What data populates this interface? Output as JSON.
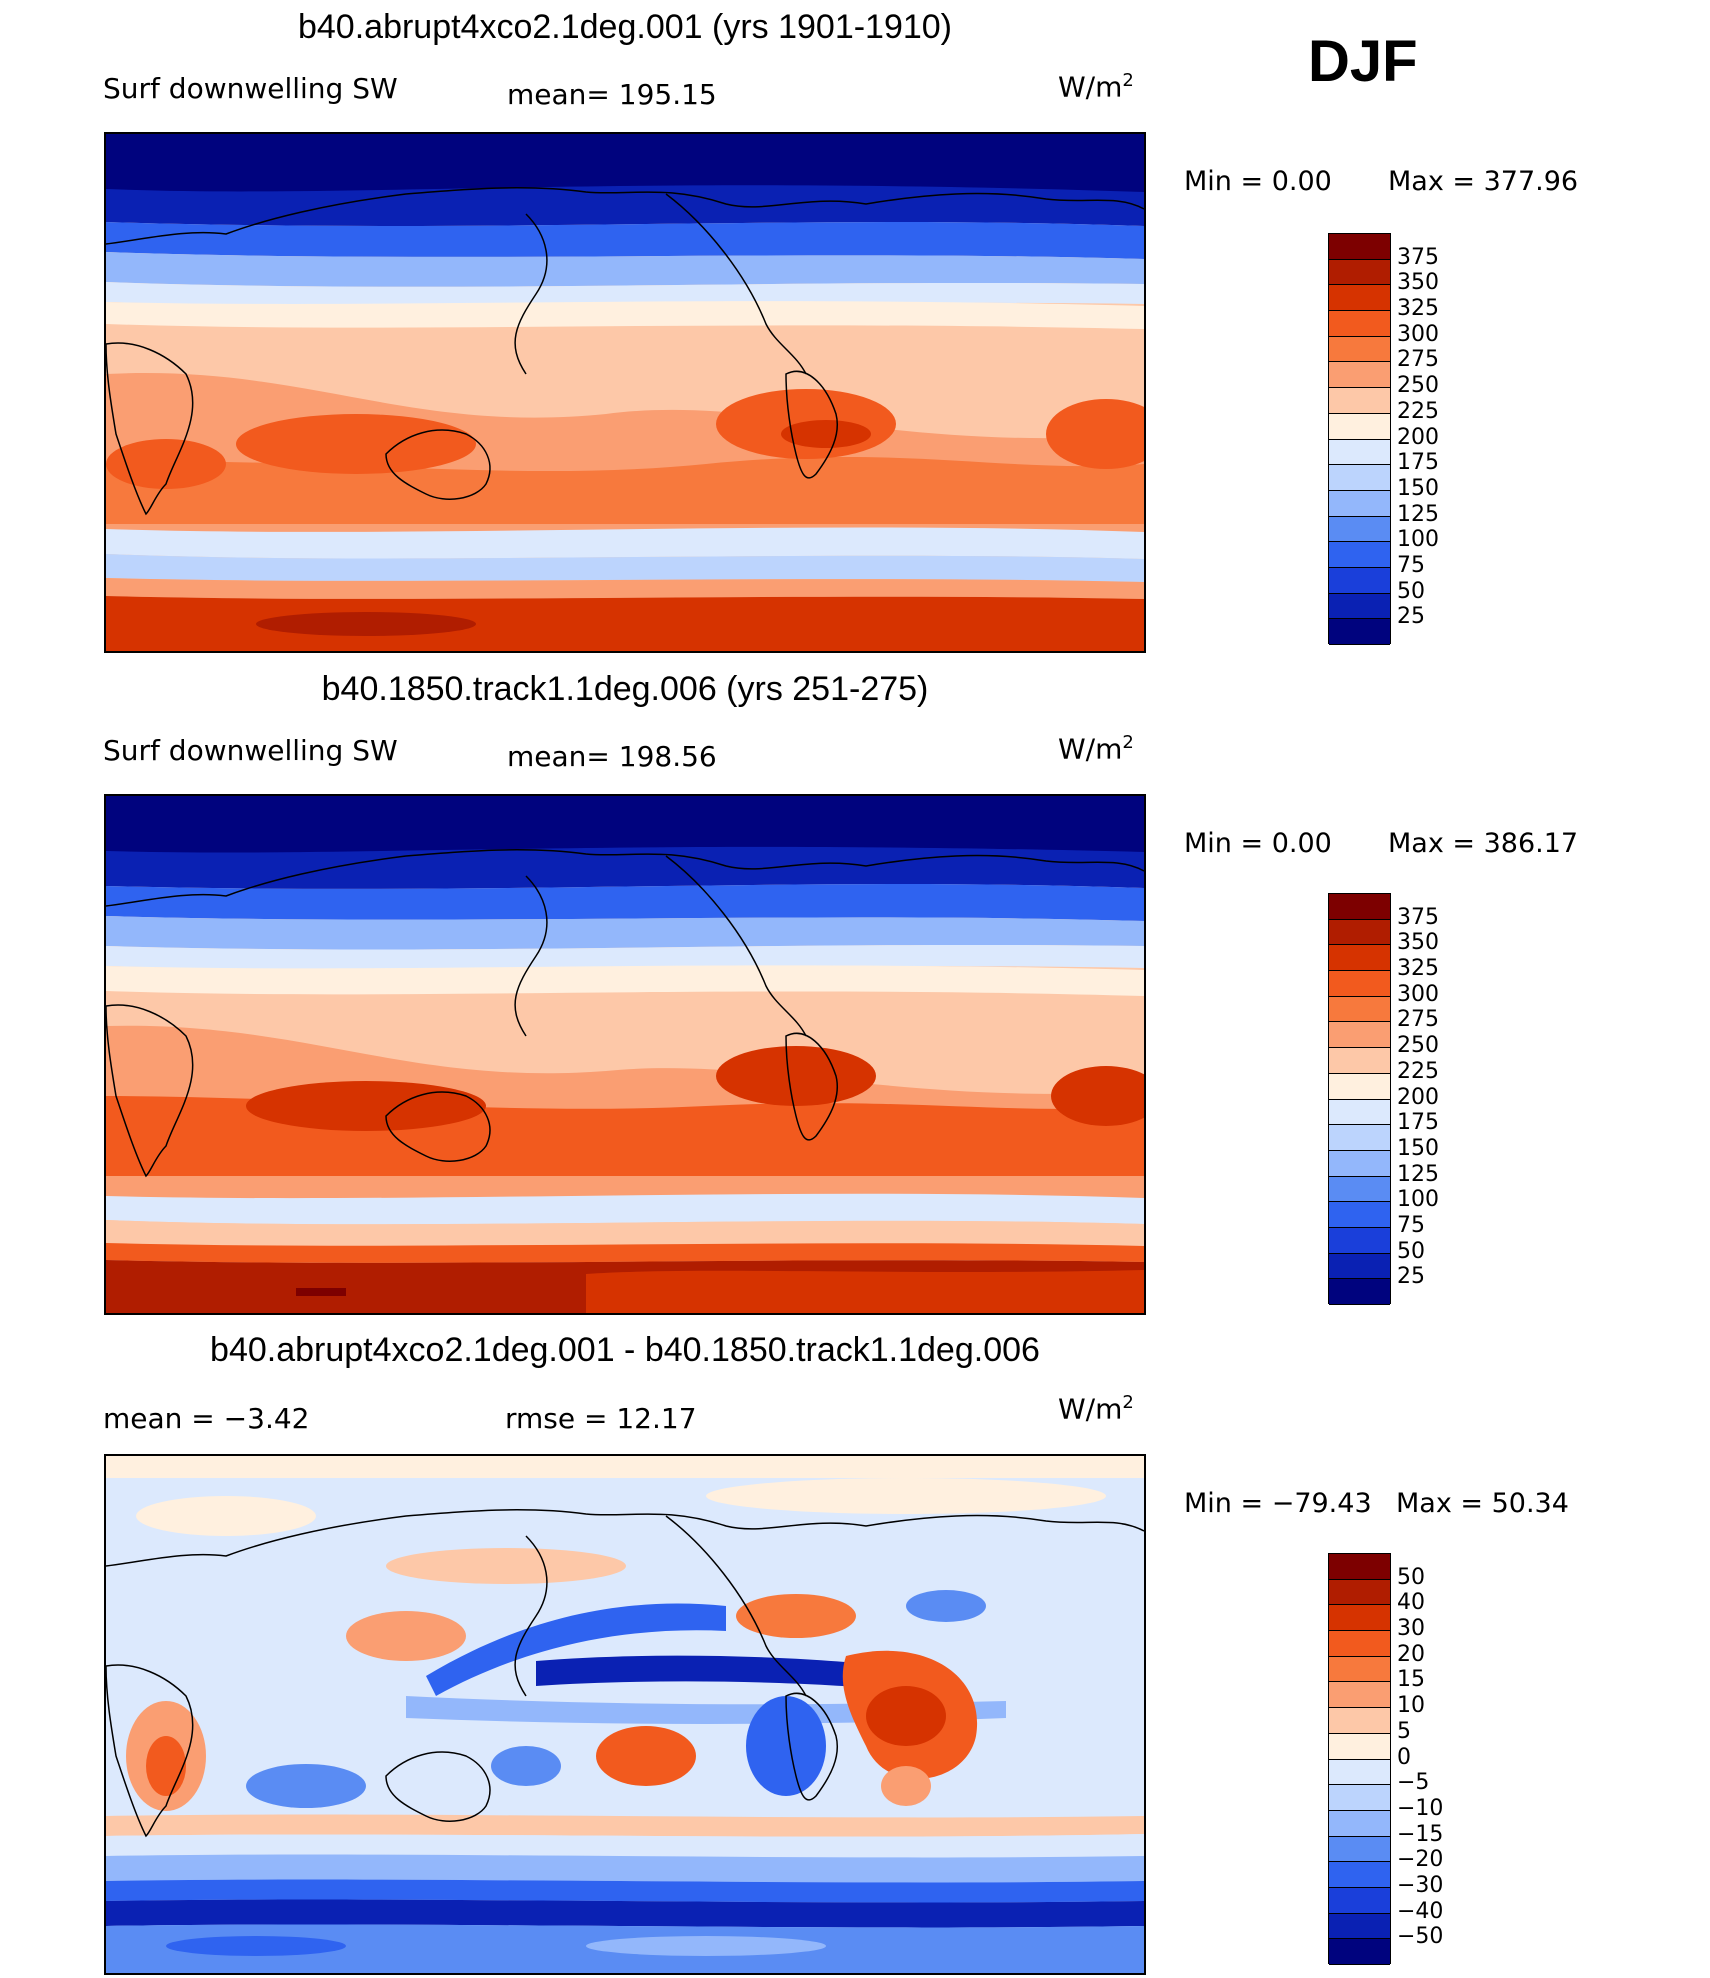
{
  "season": "DJF",
  "panels": [
    {
      "id": "p1",
      "title": "b40.abrupt4xco2.1deg.001 (yrs 1901-1910)",
      "left_label": "Surf downwelling SW",
      "center_label": "mean=  195.15",
      "units_base": "W/m",
      "units_exp": "2",
      "min_text": "Min  =     0.00",
      "max_text": "Max  =  377.96",
      "colorbar_labels": [
        "375",
        "350",
        "325",
        "300",
        "275",
        "250",
        "225",
        "200",
        "175",
        "150",
        "125",
        "100",
        "75",
        "50",
        "25"
      ],
      "colors": [
        "#7d0000",
        "#b01d00",
        "#d63300",
        "#f25a1e",
        "#f7793d",
        "#fa9e72",
        "#fdc8a8",
        "#fff0df",
        "#dce9fd",
        "#bcd4fd",
        "#93b7fb",
        "#5a8cf3",
        "#2f63f0",
        "#1a3fda",
        "#0a21b3",
        "#00037e"
      ]
    },
    {
      "id": "p2",
      "title": "b40.1850.track1.1deg.006 (yrs 251-275)",
      "left_label": "Surf downwelling SW",
      "center_label": "mean=  198.56",
      "units_base": "W/m",
      "units_exp": "2",
      "min_text": "Min  =     0.00",
      "max_text": "Max  =  386.17",
      "colorbar_labels": [
        "375",
        "350",
        "325",
        "300",
        "275",
        "250",
        "225",
        "200",
        "175",
        "150",
        "125",
        "100",
        "75",
        "50",
        "25"
      ],
      "colors": [
        "#7d0000",
        "#b01d00",
        "#d63300",
        "#f25a1e",
        "#f7793d",
        "#fa9e72",
        "#fdc8a8",
        "#fff0df",
        "#dce9fd",
        "#bcd4fd",
        "#93b7fb",
        "#5a8cf3",
        "#2f63f0",
        "#1a3fda",
        "#0a21b3",
        "#00037e"
      ]
    },
    {
      "id": "p3",
      "title": "b40.abrupt4xco2.1deg.001 - b40.1850.track1.1deg.006",
      "left_label": "mean  =    −3.42",
      "center_label": "rmse  =    12.17",
      "units_base": "W/m",
      "units_exp": "2",
      "min_text": "Min  = −79.43",
      "max_text": "Max  =    50.34",
      "colorbar_labels": [
        "50",
        "40",
        "30",
        "20",
        "15",
        "10",
        "5",
        "0",
        "−5",
        "−10",
        "−15",
        "−20",
        "−30",
        "−40",
        "−50"
      ],
      "colors": [
        "#7d0000",
        "#b01d00",
        "#d63300",
        "#f25a1e",
        "#f7793d",
        "#fa9e72",
        "#fdc8a8",
        "#fff0df",
        "#dce9fd",
        "#bcd4fd",
        "#93b7fb",
        "#5a8cf3",
        "#2f63f0",
        "#1a3fda",
        "#0a21b3",
        "#00037e"
      ]
    }
  ]
}
